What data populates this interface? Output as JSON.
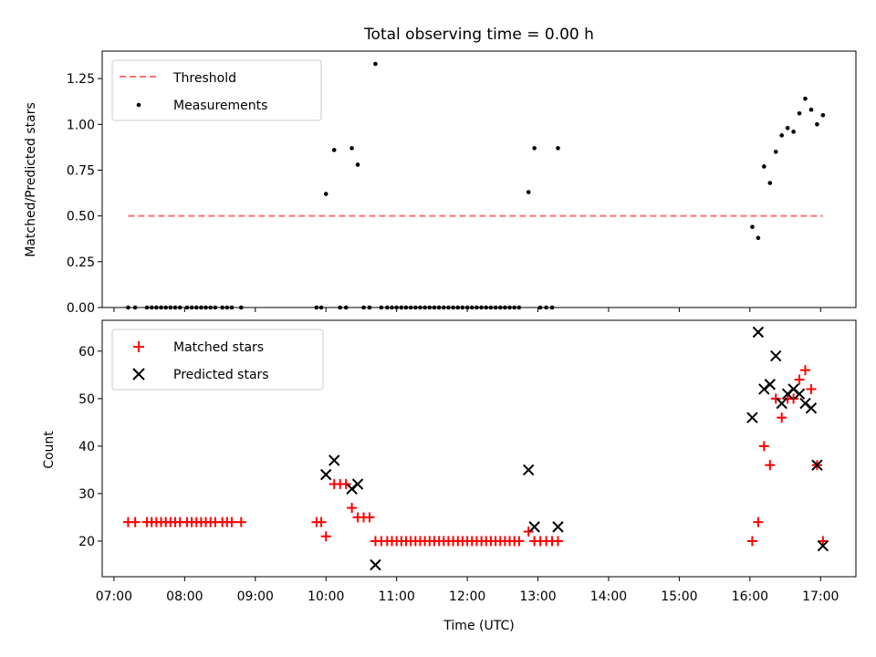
{
  "chart_data": [
    {
      "type": "scatter",
      "title": "Total observing time = 0.00 h",
      "xlabel": "",
      "ylabel": "Matched/Predicted stars",
      "xlim": [
        "06:50",
        "17:30"
      ],
      "ylim": [
        0,
        1.4
      ],
      "yticks": [
        "0.00",
        "0.25",
        "0.50",
        "0.75",
        "1.00",
        "1.25"
      ],
      "legend_position": "upper-left",
      "threshold": {
        "name": "Threshold",
        "color": "#ff7070",
        "value": 0.5,
        "x_start": "07:12",
        "x_end": "17:02"
      },
      "series": [
        {
          "name": "Measurements",
          "color": "#000000",
          "points": [
            [
              "07:12",
              0
            ],
            [
              "07:18",
              0
            ],
            [
              "07:28",
              0
            ],
            [
              "07:32",
              0
            ],
            [
              "07:36",
              0
            ],
            [
              "07:40",
              0
            ],
            [
              "07:44",
              0
            ],
            [
              "07:48",
              0
            ],
            [
              "07:52",
              0
            ],
            [
              "07:56",
              0
            ],
            [
              "08:02",
              0
            ],
            [
              "08:06",
              0
            ],
            [
              "08:10",
              0
            ],
            [
              "08:14",
              0
            ],
            [
              "08:18",
              0
            ],
            [
              "08:22",
              0
            ],
            [
              "08:26",
              0
            ],
            [
              "08:32",
              0
            ],
            [
              "08:36",
              0
            ],
            [
              "08:40",
              0
            ],
            [
              "08:48",
              0
            ],
            [
              "09:52",
              0
            ],
            [
              "09:56",
              0
            ],
            [
              "10:00",
              0.62
            ],
            [
              "10:07",
              0.86
            ],
            [
              "10:12",
              0
            ],
            [
              "10:17",
              0
            ],
            [
              "10:22",
              0.87
            ],
            [
              "10:27",
              0.78
            ],
            [
              "10:32",
              0
            ],
            [
              "10:37",
              0
            ],
            [
              "10:42",
              1.33
            ],
            [
              "10:47",
              0
            ],
            [
              "10:52",
              0
            ],
            [
              "10:56",
              0
            ],
            [
              "11:00",
              0
            ],
            [
              "11:04",
              0
            ],
            [
              "11:08",
              0
            ],
            [
              "11:12",
              0
            ],
            [
              "11:16",
              0
            ],
            [
              "11:20",
              0
            ],
            [
              "11:24",
              0
            ],
            [
              "11:28",
              0
            ],
            [
              "11:32",
              0
            ],
            [
              "11:36",
              0
            ],
            [
              "11:40",
              0
            ],
            [
              "11:44",
              0
            ],
            [
              "11:48",
              0
            ],
            [
              "11:52",
              0
            ],
            [
              "11:56",
              0
            ],
            [
              "12:00",
              0
            ],
            [
              "12:04",
              0
            ],
            [
              "12:08",
              0
            ],
            [
              "12:12",
              0
            ],
            [
              "12:16",
              0
            ],
            [
              "12:20",
              0
            ],
            [
              "12:24",
              0
            ],
            [
              "12:28",
              0
            ],
            [
              "12:32",
              0
            ],
            [
              "12:36",
              0
            ],
            [
              "12:40",
              0
            ],
            [
              "12:44",
              0
            ],
            [
              "12:52",
              0.63
            ],
            [
              "12:57",
              0.87
            ],
            [
              "13:02",
              0
            ],
            [
              "13:07",
              0
            ],
            [
              "13:12",
              0
            ],
            [
              "13:17",
              0.87
            ],
            [
              "16:02",
              0.44
            ],
            [
              "16:07",
              0.38
            ],
            [
              "16:12",
              0.77
            ],
            [
              "16:17",
              0.68
            ],
            [
              "16:22",
              0.85
            ],
            [
              "16:27",
              0.94
            ],
            [
              "16:32",
              0.98
            ],
            [
              "16:37",
              0.96
            ],
            [
              "16:42",
              1.06
            ],
            [
              "16:47",
              1.14
            ],
            [
              "16:52",
              1.08
            ],
            [
              "16:57",
              1.0
            ],
            [
              "17:02",
              1.05
            ]
          ]
        }
      ]
    },
    {
      "type": "scatter",
      "title": "",
      "xlabel": "Time (UTC)",
      "ylabel": "Count",
      "xlim": [
        "06:50",
        "17:30"
      ],
      "ylim": [
        12.5,
        66.5
      ],
      "xticks": [
        "07:00",
        "08:00",
        "09:00",
        "10:00",
        "11:00",
        "12:00",
        "13:00",
        "14:00",
        "15:00",
        "16:00",
        "17:00"
      ],
      "yticks": [
        "20",
        "30",
        "40",
        "50",
        "60"
      ],
      "legend_position": "upper-left",
      "series": [
        {
          "name": "Matched stars",
          "color": "#ff0000",
          "marker": "plus",
          "points": [
            [
              "07:12",
              24
            ],
            [
              "07:18",
              24
            ],
            [
              "07:28",
              24
            ],
            [
              "07:32",
              24
            ],
            [
              "07:36",
              24
            ],
            [
              "07:40",
              24
            ],
            [
              "07:44",
              24
            ],
            [
              "07:48",
              24
            ],
            [
              "07:52",
              24
            ],
            [
              "07:56",
              24
            ],
            [
              "08:02",
              24
            ],
            [
              "08:06",
              24
            ],
            [
              "08:10",
              24
            ],
            [
              "08:14",
              24
            ],
            [
              "08:18",
              24
            ],
            [
              "08:22",
              24
            ],
            [
              "08:26",
              24
            ],
            [
              "08:32",
              24
            ],
            [
              "08:36",
              24
            ],
            [
              "08:40",
              24
            ],
            [
              "08:48",
              24
            ],
            [
              "09:52",
              24
            ],
            [
              "09:56",
              24
            ],
            [
              "10:00",
              21
            ],
            [
              "10:07",
              32
            ],
            [
              "10:12",
              32
            ],
            [
              "10:17",
              32
            ],
            [
              "10:22",
              27
            ],
            [
              "10:27",
              25
            ],
            [
              "10:32",
              25
            ],
            [
              "10:37",
              25
            ],
            [
              "10:42",
              20
            ],
            [
              "10:47",
              20
            ],
            [
              "10:52",
              20
            ],
            [
              "10:56",
              20
            ],
            [
              "11:00",
              20
            ],
            [
              "11:04",
              20
            ],
            [
              "11:08",
              20
            ],
            [
              "11:12",
              20
            ],
            [
              "11:16",
              20
            ],
            [
              "11:20",
              20
            ],
            [
              "11:24",
              20
            ],
            [
              "11:28",
              20
            ],
            [
              "11:32",
              20
            ],
            [
              "11:36",
              20
            ],
            [
              "11:40",
              20
            ],
            [
              "11:44",
              20
            ],
            [
              "11:48",
              20
            ],
            [
              "11:52",
              20
            ],
            [
              "11:56",
              20
            ],
            [
              "12:00",
              20
            ],
            [
              "12:04",
              20
            ],
            [
              "12:08",
              20
            ],
            [
              "12:12",
              20
            ],
            [
              "12:16",
              20
            ],
            [
              "12:20",
              20
            ],
            [
              "12:24",
              20
            ],
            [
              "12:28",
              20
            ],
            [
              "12:32",
              20
            ],
            [
              "12:36",
              20
            ],
            [
              "12:40",
              20
            ],
            [
              "12:44",
              20
            ],
            [
              "12:52",
              22
            ],
            [
              "12:57",
              20
            ],
            [
              "13:02",
              20
            ],
            [
              "13:07",
              20
            ],
            [
              "13:12",
              20
            ],
            [
              "13:17",
              20
            ],
            [
              "16:02",
              20
            ],
            [
              "16:07",
              24
            ],
            [
              "16:12",
              40
            ],
            [
              "16:17",
              36
            ],
            [
              "16:22",
              50
            ],
            [
              "16:27",
              46
            ],
            [
              "16:32",
              50
            ],
            [
              "16:37",
              50
            ],
            [
              "16:42",
              54
            ],
            [
              "16:47",
              56
            ],
            [
              "16:52",
              52
            ],
            [
              "16:57",
              36
            ],
            [
              "17:02",
              20
            ]
          ]
        },
        {
          "name": "Predicted stars",
          "color": "#000000",
          "marker": "x",
          "points": [
            [
              "10:00",
              34
            ],
            [
              "10:07",
              37
            ],
            [
              "10:22",
              31
            ],
            [
              "10:27",
              32
            ],
            [
              "10:42",
              15
            ],
            [
              "12:52",
              35
            ],
            [
              "12:57",
              23
            ],
            [
              "13:17",
              23
            ],
            [
              "16:02",
              46
            ],
            [
              "16:07",
              64
            ],
            [
              "16:12",
              52
            ],
            [
              "16:17",
              53
            ],
            [
              "16:22",
              59
            ],
            [
              "16:27",
              49
            ],
            [
              "16:32",
              51
            ],
            [
              "16:37",
              52
            ],
            [
              "16:42",
              51
            ],
            [
              "16:47",
              49
            ],
            [
              "16:52",
              48
            ],
            [
              "16:57",
              36
            ],
            [
              "17:02",
              19
            ]
          ]
        }
      ]
    }
  ]
}
